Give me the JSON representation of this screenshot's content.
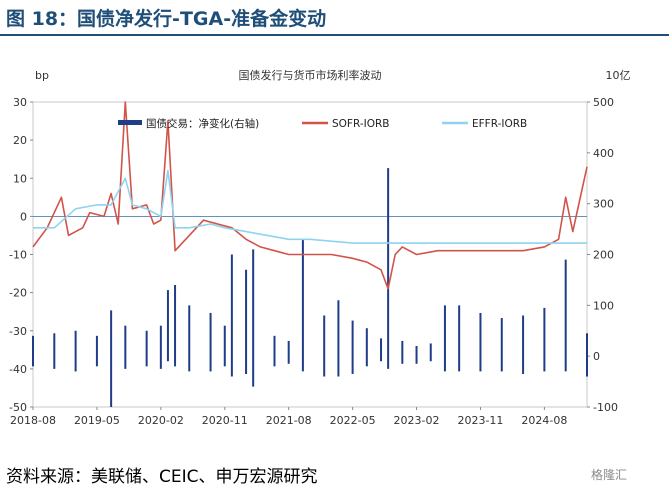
{
  "header": {
    "title": "图 18：国债净发行-TGA-准备金变动"
  },
  "footer": {
    "source": "资料来源：美联储、CEIC、申万宏源研究",
    "watermark": "格隆汇"
  },
  "chart_data": {
    "type": "line",
    "title": "国债发行与货币市场利率波动",
    "left_axis": {
      "unit": "bp",
      "min": -50,
      "max": 30,
      "ticks": [
        30,
        20,
        10,
        0,
        -10,
        -20,
        -30,
        -40,
        -50
      ]
    },
    "right_axis": {
      "unit": "10亿",
      "min": -100,
      "max": 500,
      "ticks": [
        500,
        400,
        300,
        200,
        100,
        0,
        -100
      ]
    },
    "x_axis": {
      "start": "2018-08",
      "end": "2025-02",
      "ticks": [
        "2018-08",
        "2019-05",
        "2020-02",
        "2020-11",
        "2021-08",
        "2022-05",
        "2023-02",
        "2023-11",
        "2024-08"
      ]
    },
    "legend": {
      "placement": "top"
    },
    "series": [
      {
        "name": "国债交易：净变化(右轴)",
        "type": "bar",
        "axis": "right",
        "color": "#1f3c88",
        "points": [
          [
            "2018-08",
            -20,
            40
          ],
          [
            "2018-11",
            -25,
            45
          ],
          [
            "2019-02",
            -30,
            50
          ],
          [
            "2019-05",
            -20,
            40
          ],
          [
            "2019-07",
            -100,
            90
          ],
          [
            "2019-09",
            -25,
            60
          ],
          [
            "2019-12",
            -20,
            50
          ],
          [
            "2020-02",
            -25,
            60
          ],
          [
            "2020-03",
            -10,
            130
          ],
          [
            "2020-04",
            -20,
            140
          ],
          [
            "2020-06",
            -30,
            100
          ],
          [
            "2020-09",
            -30,
            85
          ],
          [
            "2020-11",
            -20,
            60
          ],
          [
            "2020-12",
            -40,
            200
          ],
          [
            "2021-02",
            -35,
            170
          ],
          [
            "2021-03",
            -60,
            210
          ],
          [
            "2021-06",
            -20,
            40
          ],
          [
            "2021-08",
            -15,
            30
          ],
          [
            "2021-10",
            -30,
            230
          ],
          [
            "2022-01",
            -40,
            80
          ],
          [
            "2022-03",
            -40,
            110
          ],
          [
            "2022-05",
            -35,
            70
          ],
          [
            "2022-07",
            -20,
            55
          ],
          [
            "2022-09",
            -10,
            35
          ],
          [
            "2022-10",
            -25,
            370
          ],
          [
            "2022-12",
            -15,
            30
          ],
          [
            "2023-02",
            -15,
            20
          ],
          [
            "2023-04",
            -10,
            25
          ],
          [
            "2023-06",
            -30,
            100
          ],
          [
            "2023-08",
            -30,
            100
          ],
          [
            "2023-11",
            -30,
            85
          ],
          [
            "2024-02",
            -30,
            75
          ],
          [
            "2024-05",
            -35,
            80
          ],
          [
            "2024-08",
            -30,
            95
          ],
          [
            "2024-11",
            -30,
            190
          ],
          [
            "2025-02",
            -40,
            45
          ]
        ]
      },
      {
        "name": "SOFR-IORB",
        "type": "line",
        "axis": "left",
        "color": "#d1544a",
        "points": [
          [
            "2018-08",
            -8
          ],
          [
            "2018-10",
            -3
          ],
          [
            "2018-12",
            5
          ],
          [
            "2019-01",
            -5
          ],
          [
            "2019-03",
            -3
          ],
          [
            "2019-04",
            1
          ],
          [
            "2019-06",
            0
          ],
          [
            "2019-07",
            6
          ],
          [
            "2019-08",
            -2
          ],
          [
            "2019-09",
            30
          ],
          [
            "2019-10",
            2
          ],
          [
            "2019-12",
            3
          ],
          [
            "2020-01",
            -2
          ],
          [
            "2020-02",
            -1
          ],
          [
            "2020-03",
            25
          ],
          [
            "2020-04",
            -9
          ],
          [
            "2020-06",
            -5
          ],
          [
            "2020-08",
            -1
          ],
          [
            "2020-10",
            -2
          ],
          [
            "2020-12",
            -3
          ],
          [
            "2021-02",
            -6
          ],
          [
            "2021-04",
            -8
          ],
          [
            "2021-06",
            -9
          ],
          [
            "2021-08",
            -10
          ],
          [
            "2021-11",
            -10
          ],
          [
            "2022-02",
            -10
          ],
          [
            "2022-05",
            -11
          ],
          [
            "2022-07",
            -12
          ],
          [
            "2022-09",
            -14
          ],
          [
            "2022-10",
            -19
          ],
          [
            "2022-11",
            -10
          ],
          [
            "2022-12",
            -8
          ],
          [
            "2023-02",
            -10
          ],
          [
            "2023-05",
            -9
          ],
          [
            "2023-08",
            -9
          ],
          [
            "2023-11",
            -9
          ],
          [
            "2024-02",
            -9
          ],
          [
            "2024-05",
            -9
          ],
          [
            "2024-08",
            -8
          ],
          [
            "2024-10",
            -6
          ],
          [
            "2024-11",
            5
          ],
          [
            "2024-12",
            -4
          ],
          [
            "2025-02",
            13
          ]
        ]
      },
      {
        "name": "EFFR-IORB",
        "type": "line",
        "axis": "left",
        "color": "#8fd3f0",
        "points": [
          [
            "2018-08",
            -3
          ],
          [
            "2018-11",
            -3
          ],
          [
            "2019-02",
            2
          ],
          [
            "2019-05",
            3
          ],
          [
            "2019-07",
            3
          ],
          [
            "2019-09",
            10
          ],
          [
            "2019-10",
            3
          ],
          [
            "2019-12",
            2
          ],
          [
            "2020-01",
            1
          ],
          [
            "2020-02",
            0
          ],
          [
            "2020-03",
            12
          ],
          [
            "2020-04",
            -3
          ],
          [
            "2020-06",
            -3
          ],
          [
            "2020-09",
            -2
          ],
          [
            "2020-11",
            -3
          ],
          [
            "2021-02",
            -4
          ],
          [
            "2021-05",
            -5
          ],
          [
            "2021-08",
            -6
          ],
          [
            "2021-11",
            -6
          ],
          [
            "2022-02",
            -6.5
          ],
          [
            "2022-05",
            -7
          ],
          [
            "2022-08",
            -7
          ],
          [
            "2022-11",
            -7
          ],
          [
            "2023-02",
            -7
          ],
          [
            "2023-05",
            -7
          ],
          [
            "2023-08",
            -7
          ],
          [
            "2023-11",
            -7
          ],
          [
            "2024-02",
            -7
          ],
          [
            "2024-05",
            -7
          ],
          [
            "2024-08",
            -7
          ],
          [
            "2024-11",
            -7
          ],
          [
            "2025-02",
            -7
          ]
        ]
      }
    ]
  }
}
